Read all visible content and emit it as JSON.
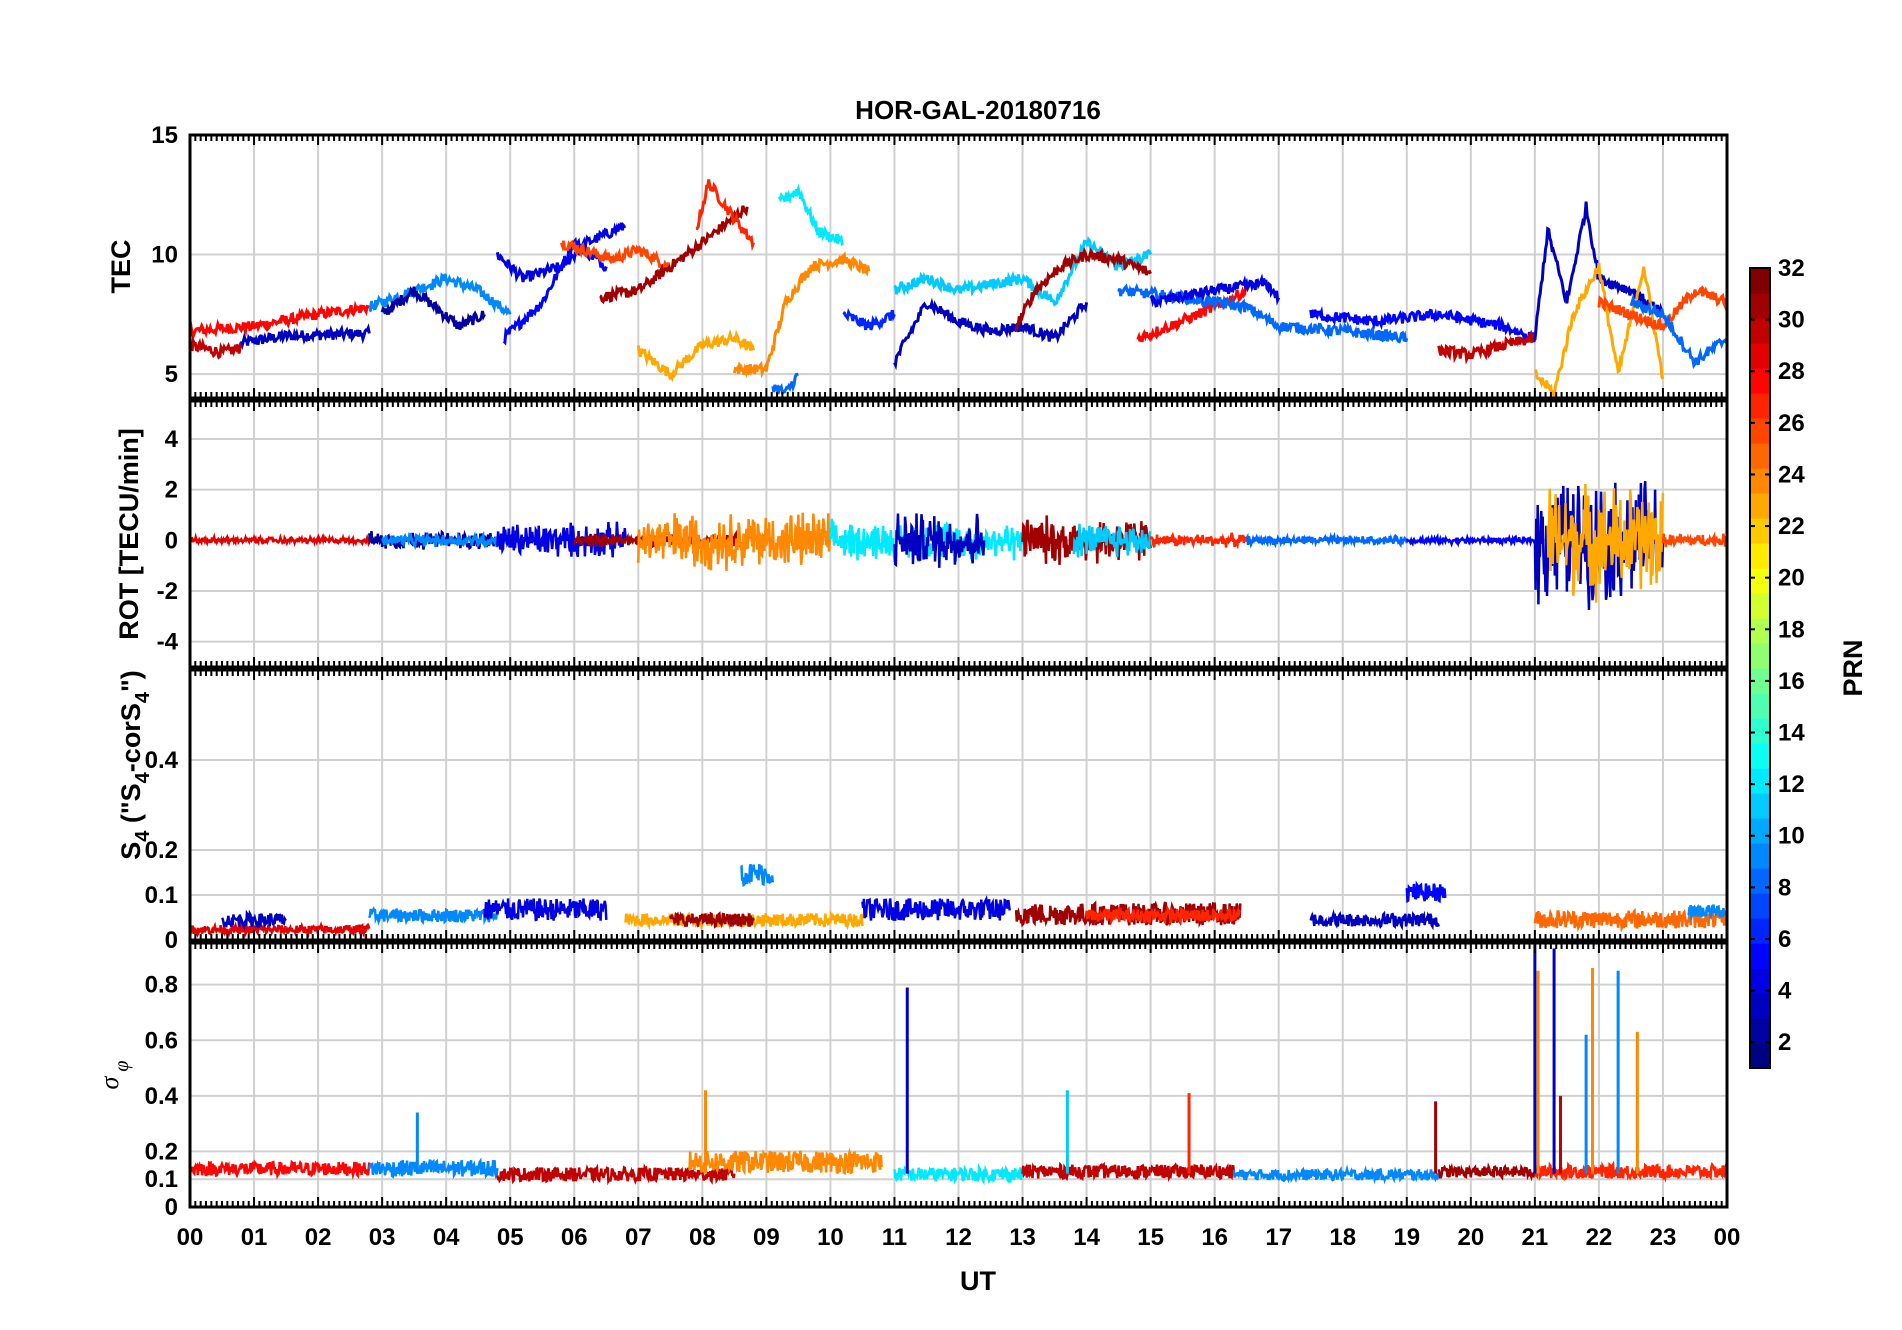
{
  "chart_data": {
    "title": "HOR-GAL-20180716",
    "type": "line",
    "x_axis": {
      "label": "UT",
      "range_hours": [
        0,
        24
      ],
      "tick_labels": [
        "00",
        "01",
        "02",
        "03",
        "04",
        "05",
        "06",
        "07",
        "08",
        "09",
        "10",
        "11",
        "12",
        "13",
        "14",
        "15",
        "16",
        "17",
        "18",
        "19",
        "20",
        "21",
        "22",
        "23",
        "00"
      ]
    },
    "panels": [
      {
        "id": "tec",
        "ylabel": "TEC",
        "ylim": [
          4,
          15
        ],
        "yticks": [
          5,
          10,
          15
        ],
        "series": [
          {
            "prn": 3,
            "hours": [
              0.8,
              1.5,
              2.8
            ],
            "values": [
              6.3,
              6.6,
              6.7
            ]
          },
          {
            "prn": 28,
            "hours": [
              0.0,
              1.0,
              2.0,
              2.8
            ],
            "values": [
              6.8,
              7.0,
              7.5,
              7.8
            ]
          },
          {
            "prn": 30,
            "hours": [
              0.0,
              0.5,
              0.8
            ],
            "values": [
              6.2,
              5.9,
              6.1
            ]
          },
          {
            "prn": 9,
            "hours": [
              2.8,
              3.5,
              4.0,
              4.5,
              5.0
            ],
            "values": [
              7.8,
              8.5,
              9.0,
              8.5,
              7.5
            ]
          },
          {
            "prn": 2,
            "hours": [
              3.0,
              3.5,
              4.2,
              4.6
            ],
            "values": [
              7.5,
              8.5,
              7.0,
              7.5
            ]
          },
          {
            "prn": 4,
            "hours": [
              4.8,
              5.2,
              5.8,
              6.2,
              6.8
            ],
            "values": [
              10.0,
              9.0,
              9.5,
              10.5,
              11.2
            ]
          },
          {
            "prn": 5,
            "hours": [
              4.9,
              5.5,
              6.0,
              6.5
            ],
            "values": [
              6.5,
              8.0,
              10.5,
              9.5
            ]
          },
          {
            "prn": 26,
            "hours": [
              5.8,
              6.6,
              7.0,
              7.5
            ],
            "values": [
              10.5,
              9.8,
              10.2,
              9.5
            ]
          },
          {
            "prn": 31,
            "hours": [
              6.4,
              7.0,
              7.5,
              8.0,
              8.7
            ],
            "values": [
              8.2,
              8.5,
              9.5,
              10.5,
              12.0
            ]
          },
          {
            "prn": 23,
            "hours": [
              7.0,
              7.5,
              8.0,
              8.5,
              8.8
            ],
            "values": [
              6.0,
              5.0,
              6.2,
              6.5,
              6.0
            ]
          },
          {
            "prn": 27,
            "hours": [
              7.9,
              8.1,
              8.5,
              8.8
            ],
            "values": [
              11.0,
              13.0,
              11.5,
              10.5
            ]
          },
          {
            "prn": 24,
            "hours": [
              8.5,
              9.0,
              9.3,
              9.7,
              10.2,
              10.6
            ],
            "values": [
              5.2,
              5.2,
              8.0,
              9.5,
              9.8,
              9.3
            ]
          },
          {
            "prn": 12,
            "hours": [
              9.2,
              9.5,
              9.8,
              10.2
            ],
            "values": [
              12.2,
              12.7,
              11.0,
              10.5
            ]
          },
          {
            "prn": 8,
            "hours": [
              9.1,
              9.3,
              9.5
            ],
            "values": [
              4.5,
              4.2,
              5.0
            ]
          },
          {
            "prn": 6,
            "hours": [
              10.2,
              10.6,
              11.0
            ],
            "values": [
              7.5,
              7.0,
              7.5
            ]
          },
          {
            "prn": 3,
            "hours": [
              11.0,
              11.5,
              12.0,
              12.5,
              13.0,
              13.5,
              14.0
            ],
            "values": [
              5.5,
              8.0,
              7.2,
              6.8,
              7.0,
              6.5,
              8.0
            ]
          },
          {
            "prn": 11,
            "hours": [
              11.0,
              11.5,
              12.0,
              13.0,
              13.5,
              14.0,
              14.5,
              15.0
            ],
            "values": [
              8.5,
              9.0,
              8.5,
              9.0,
              8.0,
              10.5,
              9.5,
              10.0
            ]
          },
          {
            "prn": 31,
            "hours": [
              12.9,
              13.2,
              13.6,
              14.0,
              14.5,
              15.0
            ],
            "values": [
              7.0,
              8.5,
              9.5,
              10.0,
              9.8,
              9.2
            ]
          },
          {
            "prn": 28,
            "hours": [
              14.8,
              15.3,
              16.0,
              16.5
            ],
            "values": [
              6.5,
              7.0,
              7.8,
              8.5
            ]
          },
          {
            "prn": 8,
            "hours": [
              14.5,
              15.5,
              16.5,
              17.0,
              18.0,
              19.0
            ],
            "values": [
              8.5,
              8.2,
              7.8,
              7.0,
              6.8,
              6.5
            ]
          },
          {
            "prn": 4,
            "hours": [
              15.0,
              16.0,
              16.8,
              17.0
            ],
            "values": [
              8.0,
              8.5,
              8.8,
              8.2
            ]
          },
          {
            "prn": 5,
            "hours": [
              17.5,
              18.5,
              19.5,
              20.5,
              21.0
            ],
            "values": [
              7.5,
              7.2,
              7.5,
              7.0,
              6.5
            ]
          },
          {
            "prn": 30,
            "hours": [
              19.5,
              20.0,
              20.5,
              21.0
            ],
            "values": [
              6.0,
              5.8,
              6.2,
              6.5
            ]
          },
          {
            "prn": 3,
            "hours": [
              21.0,
              21.2,
              21.5,
              21.8,
              22.0,
              22.5,
              23.0
            ],
            "values": [
              6.5,
              11.0,
              8.0,
              12.0,
              9.0,
              8.5,
              7.5
            ]
          },
          {
            "prn": 23,
            "hours": [
              21.0,
              21.3,
              21.6,
              22.0,
              22.3,
              22.7,
              23.0
            ],
            "values": [
              5.0,
              4.2,
              7.5,
              9.5,
              5.0,
              9.5,
              4.8
            ]
          },
          {
            "prn": 26,
            "hours": [
              22.0,
              23.0,
              23.5,
              24.0
            ],
            "values": [
              8.0,
              7.0,
              8.5,
              8.0
            ]
          },
          {
            "prn": 8,
            "hours": [
              22.5,
              23.0,
              23.5,
              24.0
            ],
            "values": [
              8.0,
              7.5,
              5.5,
              6.5
            ]
          }
        ]
      },
      {
        "id": "rot",
        "ylabel": "ROT [TECU/min]",
        "ylim": [
          -5,
          5.5
        ],
        "yticks": [
          -4,
          -2,
          0,
          2,
          4
        ],
        "segments": [
          {
            "prn": 29,
            "start_hour": 0.0,
            "end_hour": 2.8,
            "amplitude": 0.15
          },
          {
            "prn": 2,
            "start_hour": 2.8,
            "end_hour": 4.8,
            "amplitude": 0.4
          },
          {
            "prn": 9,
            "start_hour": 3.0,
            "end_hour": 5.0,
            "amplitude": 0.3
          },
          {
            "prn": 4,
            "start_hour": 4.8,
            "end_hour": 6.8,
            "amplitude": 0.8
          },
          {
            "prn": 31,
            "start_hour": 6.0,
            "end_hour": 8.6,
            "amplitude": 0.3
          },
          {
            "prn": 24,
            "start_hour": 7.0,
            "end_hour": 10.0,
            "amplitude": 1.3
          },
          {
            "prn": 12,
            "start_hour": 10.0,
            "end_hour": 13.0,
            "amplitude": 0.9
          },
          {
            "prn": 3,
            "start_hour": 11.0,
            "end_hour": 12.4,
            "amplitude": 1.3
          },
          {
            "prn": 31,
            "start_hour": 13.0,
            "end_hour": 15.0,
            "amplitude": 1.1
          },
          {
            "prn": 11,
            "start_hour": 13.8,
            "end_hour": 15.0,
            "amplitude": 0.8
          },
          {
            "prn": 27,
            "start_hour": 15.0,
            "end_hour": 16.5,
            "amplitude": 0.3
          },
          {
            "prn": 8,
            "start_hour": 16.5,
            "end_hour": 19.0,
            "amplitude": 0.2
          },
          {
            "prn": 5,
            "start_hour": 19.0,
            "end_hour": 21.0,
            "amplitude": 0.15
          },
          {
            "prn": 3,
            "start_hour": 21.0,
            "end_hour": 23.0,
            "amplitude": 2.8
          },
          {
            "prn": 23,
            "start_hour": 21.2,
            "end_hour": 23.0,
            "amplitude": 2.5
          },
          {
            "prn": 26,
            "start_hour": 23.0,
            "end_hour": 24.0,
            "amplitude": 0.3
          }
        ]
      },
      {
        "id": "s4",
        "ylabel": "S",
        "ylabel_sub1": "4",
        "ylabel_mid": " (\"S",
        "ylabel_sub2": "4",
        "ylabel_end": "-corS",
        "ylabel_sub3": "4",
        "ylabel_close": "\")",
        "ylim": [
          0,
          0.6
        ],
        "yticks": [
          0,
          0.1,
          0.2,
          0.4
        ],
        "segments": [
          {
            "prn": 29,
            "start_hour": 0.0,
            "end_hour": 2.8,
            "base": 0.02,
            "amplitude": 0.02
          },
          {
            "prn": 3,
            "start_hour": 0.5,
            "end_hour": 1.5,
            "base": 0.04,
            "amplitude": 0.03
          },
          {
            "prn": 9,
            "start_hour": 2.8,
            "end_hour": 4.8,
            "base": 0.05,
            "amplitude": 0.03
          },
          {
            "prn": 4,
            "start_hour": 4.6,
            "end_hour": 6.5,
            "base": 0.06,
            "amplitude": 0.05
          },
          {
            "prn": 23,
            "start_hour": 6.8,
            "end_hour": 10.5,
            "base": 0.04,
            "amplitude": 0.03
          },
          {
            "prn": 9,
            "start_hour": 8.6,
            "end_hour": 9.1,
            "base": 0.14,
            "amplitude": 0.05
          },
          {
            "prn": 31,
            "start_hour": 7.5,
            "end_hour": 8.8,
            "base": 0.04,
            "amplitude": 0.03
          },
          {
            "prn": 4,
            "start_hour": 10.5,
            "end_hour": 12.8,
            "base": 0.06,
            "amplitude": 0.05
          },
          {
            "prn": 31,
            "start_hour": 12.9,
            "end_hour": 16.4,
            "base": 0.05,
            "amplitude": 0.05
          },
          {
            "prn": 27,
            "start_hour": 14.0,
            "end_hour": 16.4,
            "base": 0.05,
            "amplitude": 0.03
          },
          {
            "prn": 3,
            "start_hour": 17.5,
            "end_hour": 19.5,
            "base": 0.04,
            "amplitude": 0.03
          },
          {
            "prn": 5,
            "start_hour": 19.0,
            "end_hour": 19.6,
            "base": 0.1,
            "amplitude": 0.04
          },
          {
            "prn": 25,
            "start_hour": 21.0,
            "end_hour": 24.0,
            "base": 0.04,
            "amplitude": 0.04
          },
          {
            "prn": 9,
            "start_hour": 23.4,
            "end_hour": 24.0,
            "base": 0.06,
            "amplitude": 0.03
          }
        ]
      },
      {
        "id": "sigma_phi",
        "ylabel": "σ",
        "ylabel_sub": "φ",
        "ylim": [
          0,
          0.95
        ],
        "yticks": [
          0,
          0.1,
          0.2,
          0.4,
          0.6,
          0.8
        ],
        "segments": [
          {
            "prn": 28,
            "start_hour": 0.0,
            "end_hour": 2.8,
            "base": 0.13,
            "amplitude": 0.05
          },
          {
            "prn": 9,
            "start_hour": 2.8,
            "end_hour": 4.8,
            "base": 0.13,
            "amplitude": 0.06
          },
          {
            "prn": 30,
            "start_hour": 4.8,
            "end_hour": 8.5,
            "base": 0.11,
            "amplitude": 0.05
          },
          {
            "prn": 24,
            "start_hour": 7.8,
            "end_hour": 10.8,
            "base": 0.15,
            "amplitude": 0.08
          },
          {
            "prn": 12,
            "start_hour": 11.0,
            "end_hour": 13.0,
            "base": 0.11,
            "amplitude": 0.05
          },
          {
            "prn": 30,
            "start_hour": 13.0,
            "end_hour": 16.3,
            "base": 0.12,
            "amplitude": 0.05
          },
          {
            "prn": 9,
            "start_hour": 16.3,
            "end_hour": 19.5,
            "base": 0.11,
            "amplitude": 0.04
          },
          {
            "prn": 31,
            "start_hour": 19.5,
            "end_hour": 21.0,
            "base": 0.12,
            "amplitude": 0.04
          },
          {
            "prn": 27,
            "start_hour": 21.0,
            "end_hour": 24.0,
            "base": 0.12,
            "amplitude": 0.05
          }
        ],
        "spikes": [
          {
            "prn": 3,
            "hour": 11.2,
            "value": 0.79
          },
          {
            "prn": 11,
            "hour": 13.7,
            "value": 0.42
          },
          {
            "prn": 27,
            "hour": 15.6,
            "value": 0.41
          },
          {
            "prn": 31,
            "hour": 19.45,
            "value": 0.38
          },
          {
            "prn": 24,
            "hour": 8.05,
            "value": 0.42
          },
          {
            "prn": 9,
            "hour": 3.55,
            "value": 0.34
          },
          {
            "prn": 24,
            "hour": 21.05,
            "value": 0.85
          },
          {
            "prn": 3,
            "hour": 21.0,
            "value": 0.95
          },
          {
            "prn": 3,
            "hour": 21.3,
            "value": 0.93
          },
          {
            "prn": 9,
            "hour": 21.8,
            "value": 0.62
          },
          {
            "prn": 9,
            "hour": 22.3,
            "value": 0.85
          },
          {
            "prn": 24,
            "hour": 21.9,
            "value": 0.86
          },
          {
            "prn": 24,
            "hour": 22.6,
            "value": 0.63
          },
          {
            "prn": 30,
            "hour": 21.4,
            "value": 0.4
          }
        ]
      }
    ],
    "colorbar": {
      "label": "PRN",
      "range": [
        1,
        32
      ],
      "ticks": [
        2,
        4,
        6,
        8,
        10,
        12,
        14,
        16,
        18,
        20,
        22,
        24,
        26,
        28,
        30,
        32
      ],
      "colormap": "jet",
      "levels": 32
    }
  }
}
